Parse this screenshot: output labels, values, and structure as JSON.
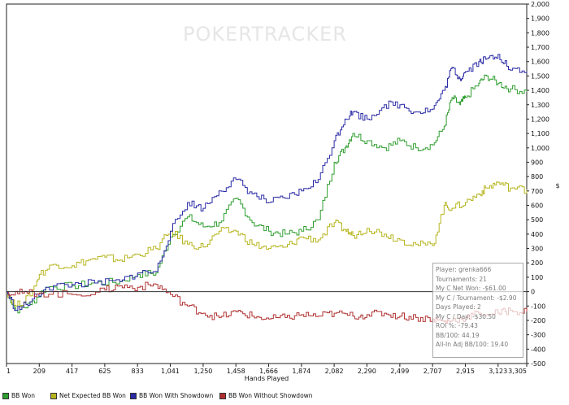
{
  "chart_data": {
    "type": "line",
    "title": "",
    "watermark": "POKERTRACKER",
    "xlabel": "Hands Played",
    "ylabel": "$",
    "xlim": [
      1,
      3305
    ],
    "ylim": [
      -500,
      2000
    ],
    "x_ticks": [
      "1",
      "209",
      "417",
      "625",
      "833",
      "1,041",
      "1,250",
      "1,458",
      "1,666",
      "1,874",
      "2,082",
      "2,290",
      "2,499",
      "2,707",
      "2,915",
      "3,123",
      "3,305"
    ],
    "y_ticks": [
      "2,000",
      "1,900",
      "1,800",
      "1,700",
      "1,600",
      "1,500",
      "1,400",
      "1,300",
      "1,200",
      "1,100",
      "1,000",
      "900",
      "800",
      "700",
      "600",
      "500",
      "400",
      "300",
      "200",
      "100",
      "0",
      "-100",
      "-200",
      "-300",
      "-400",
      "-500"
    ],
    "series": [
      {
        "name": "BB Won",
        "color": "#2f9e2f",
        "points": [
          [
            1,
            0
          ],
          [
            60,
            -130
          ],
          [
            150,
            -90
          ],
          [
            250,
            30
          ],
          [
            417,
            40
          ],
          [
            560,
            60
          ],
          [
            720,
            70
          ],
          [
            833,
            120
          ],
          [
            950,
            130
          ],
          [
            1041,
            380
          ],
          [
            1150,
            520
          ],
          [
            1250,
            450
          ],
          [
            1350,
            480
          ],
          [
            1458,
            650
          ],
          [
            1560,
            480
          ],
          [
            1666,
            420
          ],
          [
            1770,
            400
          ],
          [
            1874,
            420
          ],
          [
            1980,
            500
          ],
          [
            2082,
            900
          ],
          [
            2150,
            1000
          ],
          [
            2200,
            1100
          ],
          [
            2290,
            1050
          ],
          [
            2400,
            1000
          ],
          [
            2499,
            1050
          ],
          [
            2600,
            1000
          ],
          [
            2707,
            1020
          ],
          [
            2780,
            1150
          ],
          [
            2830,
            1350
          ],
          [
            2880,
            1300
          ],
          [
            2915,
            1350
          ],
          [
            3000,
            1450
          ],
          [
            3050,
            1500
          ],
          [
            3123,
            1450
          ],
          [
            3200,
            1410
          ],
          [
            3305,
            1390
          ]
        ]
      },
      {
        "name": "Net Expected BB Won",
        "color": "#b7b51f",
        "points": [
          [
            1,
            0
          ],
          [
            60,
            -100
          ],
          [
            150,
            -30
          ],
          [
            209,
            120
          ],
          [
            300,
            190
          ],
          [
            417,
            180
          ],
          [
            520,
            220
          ],
          [
            625,
            240
          ],
          [
            720,
            220
          ],
          [
            833,
            260
          ],
          [
            950,
            300
          ],
          [
            1041,
            420
          ],
          [
            1150,
            330
          ],
          [
            1250,
            310
          ],
          [
            1350,
            420
          ],
          [
            1458,
            420
          ],
          [
            1560,
            330
          ],
          [
            1666,
            300
          ],
          [
            1770,
            310
          ],
          [
            1874,
            380
          ],
          [
            1980,
            360
          ],
          [
            2082,
            480
          ],
          [
            2150,
            430
          ],
          [
            2200,
            390
          ],
          [
            2290,
            440
          ],
          [
            2400,
            400
          ],
          [
            2499,
            360
          ],
          [
            2600,
            330
          ],
          [
            2707,
            320
          ],
          [
            2780,
            600
          ],
          [
            2830,
            580
          ],
          [
            2915,
            620
          ],
          [
            3000,
            680
          ],
          [
            3050,
            720
          ],
          [
            3123,
            760
          ],
          [
            3200,
            720
          ],
          [
            3305,
            710
          ]
        ]
      },
      {
        "name": "BB Won With Showdown",
        "color": "#2a2aa6",
        "points": [
          [
            1,
            0
          ],
          [
            60,
            -130
          ],
          [
            150,
            -70
          ],
          [
            250,
            30
          ],
          [
            417,
            50
          ],
          [
            560,
            60
          ],
          [
            720,
            70
          ],
          [
            833,
            130
          ],
          [
            950,
            140
          ],
          [
            1041,
            420
          ],
          [
            1150,
            620
          ],
          [
            1250,
            580
          ],
          [
            1350,
            700
          ],
          [
            1458,
            780
          ],
          [
            1560,
            680
          ],
          [
            1666,
            620
          ],
          [
            1770,
            650
          ],
          [
            1874,
            700
          ],
          [
            1980,
            780
          ],
          [
            2082,
            1050
          ],
          [
            2150,
            1200
          ],
          [
            2200,
            1250
          ],
          [
            2290,
            1200
          ],
          [
            2400,
            1300
          ],
          [
            2499,
            1300
          ],
          [
            2600,
            1250
          ],
          [
            2707,
            1270
          ],
          [
            2780,
            1400
          ],
          [
            2830,
            1560
          ],
          [
            2880,
            1480
          ],
          [
            2915,
            1530
          ],
          [
            3000,
            1600
          ],
          [
            3050,
            1620
          ],
          [
            3123,
            1650
          ],
          [
            3200,
            1540
          ],
          [
            3305,
            1530
          ]
        ]
      },
      {
        "name": "BB Won Without Showdown",
        "color": "#b03030",
        "points": [
          [
            1,
            0
          ],
          [
            100,
            -10
          ],
          [
            209,
            -10
          ],
          [
            417,
            -20
          ],
          [
            625,
            10
          ],
          [
            720,
            40
          ],
          [
            833,
            30
          ],
          [
            950,
            50
          ],
          [
            1041,
            -20
          ],
          [
            1150,
            -100
          ],
          [
            1250,
            -150
          ],
          [
            1350,
            -180
          ],
          [
            1458,
            -140
          ],
          [
            1560,
            -170
          ],
          [
            1666,
            -190
          ],
          [
            1770,
            -180
          ],
          [
            1874,
            -160
          ],
          [
            1980,
            -170
          ],
          [
            2082,
            -150
          ],
          [
            2200,
            -170
          ],
          [
            2290,
            -160
          ],
          [
            2400,
            -150
          ],
          [
            2499,
            -170
          ],
          [
            2600,
            -180
          ],
          [
            2707,
            -190
          ],
          [
            2780,
            -210
          ],
          [
            2830,
            -200
          ],
          [
            2915,
            -180
          ],
          [
            3000,
            -150
          ],
          [
            3123,
            -150
          ],
          [
            3200,
            -130
          ],
          [
            3305,
            -140
          ]
        ]
      }
    ],
    "grid": false,
    "legend_position": "bottom"
  },
  "stats": [
    "Player: grenka666",
    "Tournaments: 21",
    "My C Net Won: -$61.00",
    "My C / Tournament: -$2.90",
    "Days Played: 2",
    "My C / Day: -$30.50",
    "ROI %: -79.43",
    "BB/100: 44.19",
    "All-In Adj BB/100: 19.40"
  ]
}
